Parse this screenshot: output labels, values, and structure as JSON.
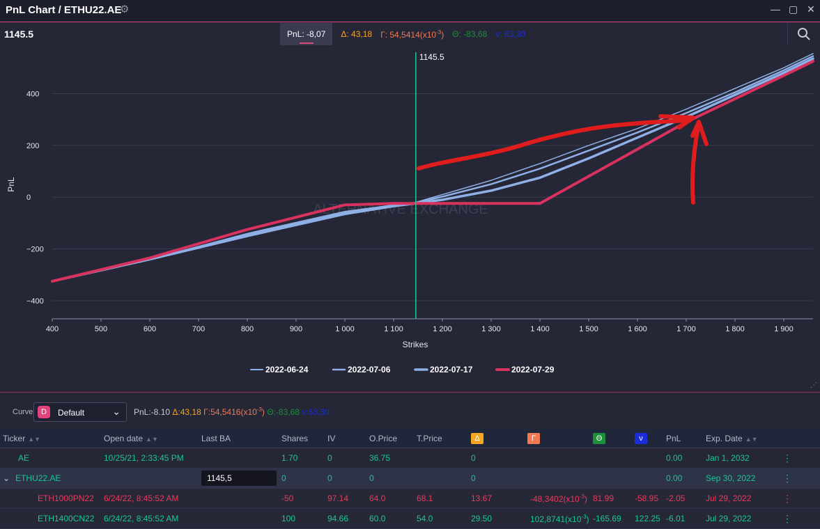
{
  "window": {
    "title": "PnL Chart / ETHU22.AE",
    "minimize_glyph": "—",
    "maximize_glyph": "▢",
    "close_glyph": "✕"
  },
  "chart_header": {
    "current_price": "1145.5",
    "pnl": "PnL: -8,07",
    "delta": "Δ: 43,18",
    "gamma": "Γ: 54,5414",
    "gamma_unit": "(x10",
    "gamma_exp": "-3",
    "gamma_close": ")",
    "theta": "Θ: -83,68",
    "vega": "ν: 63,30"
  },
  "colors": {
    "accent": "#e0447a",
    "delta": "#f5a623",
    "gamma": "#f07a55",
    "theta": "#1e8f3a",
    "vega": "#1a2dd8",
    "positive_green": "#18c79a",
    "negative_red": "#f0365a",
    "cursor_line": "#20c997",
    "annotation": "#e01d1d"
  },
  "chart_data": {
    "type": "line",
    "xlabel": "Strikes",
    "ylabel": "PnL",
    "xlim": [
      400,
      1960
    ],
    "ylim": [
      -470,
      560
    ],
    "x_ticks": [
      400,
      500,
      600,
      700,
      800,
      900,
      1000,
      1100,
      1200,
      1300,
      1400,
      1500,
      1600,
      1700,
      1800,
      1900
    ],
    "x_tick_labels": [
      "400",
      "500",
      "600",
      "700",
      "800",
      "900",
      "1 000",
      "1 100",
      "1 200",
      "1 300",
      "1 400",
      "1 500",
      "1 600",
      "1 700",
      "1 800",
      "1 900"
    ],
    "y_ticks": [
      400,
      200,
      0,
      -200,
      -400
    ],
    "y_tick_labels": [
      "400",
      "200",
      "0",
      "−200",
      "−400"
    ],
    "cursor_x": 1145.5,
    "cursor_label": "1145.5",
    "watermark": "ALTERNATIVE EXCHANGE",
    "grid": true,
    "legend_position": "bottom",
    "series": [
      {
        "name": "2022-06-24",
        "color": "#8fb0e6",
        "width": 1.5,
        "x": [
          400,
          600,
          800,
          1000,
          1100,
          1145,
          1200,
          1300,
          1400,
          1500,
          1600,
          1700,
          1800,
          1900,
          1960
        ],
        "y": [
          -325,
          -240,
          -140,
          -55,
          -30,
          -20,
          10,
          65,
          130,
          200,
          265,
          340,
          420,
          500,
          555
        ]
      },
      {
        "name": "2022-07-06",
        "color": "#8fb0e6",
        "width": 2.5,
        "x": [
          400,
          600,
          800,
          1000,
          1100,
          1145,
          1200,
          1300,
          1400,
          1500,
          1600,
          1700,
          1800,
          1900,
          1960
        ],
        "y": [
          -325,
          -240,
          -145,
          -60,
          -33,
          -22,
          2,
          50,
          110,
          180,
          250,
          325,
          405,
          490,
          545
        ]
      },
      {
        "name": "2022-07-17",
        "color": "#8fb0e6",
        "width": 3.5,
        "x": [
          400,
          600,
          800,
          1000,
          1100,
          1145,
          1200,
          1300,
          1400,
          1500,
          1600,
          1700,
          1800,
          1900,
          1960
        ],
        "y": [
          -325,
          -240,
          -150,
          -65,
          -35,
          -24,
          -10,
          25,
          75,
          150,
          230,
          310,
          395,
          480,
          535
        ]
      },
      {
        "name": "2022-07-29",
        "color": "#d9325f",
        "width": 4,
        "x": [
          400,
          600,
          800,
          1000,
          1100,
          1145,
          1400,
          1700,
          1800,
          1900,
          1960
        ],
        "y": [
          -325,
          -235,
          -125,
          -30,
          -24,
          -24,
          -24,
          290,
          380,
          470,
          525
        ]
      }
    ]
  },
  "curve_bar": {
    "label": "Curve",
    "badge": "D",
    "selected": "Default",
    "pnl": "PnL:-8.10",
    "delta": "Δ:43,18",
    "gamma": "Γ:54,5416(x10",
    "gamma_exp": "-3",
    "gamma_close": ")",
    "theta": "Θ:-83,68",
    "vega": "ν:63,30"
  },
  "table": {
    "headers": {
      "ticker": "Ticker",
      "open_date": "Open date",
      "last_ba": "Last BA",
      "shares": "Shares",
      "iv": "IV",
      "oprice": "O.Price",
      "tprice": "T.Price",
      "delta": "Δ",
      "gamma": "Γ",
      "theta": "Θ",
      "vega": "ν",
      "pnl": "PnL",
      "exp_date": "Exp. Date"
    },
    "rows": [
      {
        "ticker": "AE",
        "open_date": "10/25/21, 2:33:45 PM",
        "last_ba": "",
        "shares": "1.70",
        "iv": "0",
        "oprice": "36.75",
        "tprice": "",
        "delta": "0",
        "gamma": "",
        "theta": "",
        "vega": "",
        "pnl": "0.00",
        "exp_date": "Jan 1, 2032"
      },
      {
        "ticker": "ETHU22.AE",
        "open_date": "",
        "last_ba": "1145,5",
        "shares": "0",
        "iv": "0",
        "oprice": "0",
        "tprice": "",
        "delta": "0",
        "gamma": "",
        "theta": "",
        "vega": "",
        "pnl": "0.00",
        "exp_date": "Sep 30, 2022"
      },
      {
        "ticker": "ETH1000PN22",
        "open_date": "6/24/22, 8:45:52 AM",
        "last_ba": "",
        "shares": "-50",
        "iv": "97.14",
        "oprice": "64.0",
        "tprice": "68.1",
        "delta": "13.67",
        "gamma": "-48,3402(x10",
        "gamma_exp": "-3",
        "theta": "81.99",
        "vega": "-58.95",
        "pnl": "-2.05",
        "exp_date": "Jul 29, 2022"
      },
      {
        "ticker": "ETH1400CN22",
        "open_date": "6/24/22, 8:45:52 AM",
        "last_ba": "",
        "shares": "100",
        "iv": "94.66",
        "oprice": "60.0",
        "tprice": "54.0",
        "delta": "29.50",
        "gamma": "102,8741(x10",
        "gamma_exp": "-3",
        "theta": "-165.69",
        "vega": "122.25",
        "pnl": "-6.01",
        "exp_date": "Jul 29, 2022"
      }
    ]
  }
}
